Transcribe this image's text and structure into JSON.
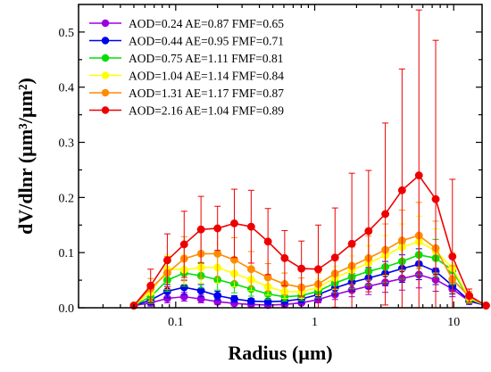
{
  "chart_data": {
    "type": "line",
    "title": "",
    "xlabel": "Radius (µm)",
    "ylabel": "dV/dlnr (µm³/µm²)",
    "xscale": "log",
    "xlim": [
      0.02,
      16
    ],
    "ylim": [
      0,
      0.55
    ],
    "xticks": [
      0.1,
      1,
      10
    ],
    "xtick_labels": [
      "0.1",
      "1",
      "10"
    ],
    "yticks": [
      0.0,
      0.1,
      0.2,
      0.3,
      0.4,
      0.5
    ],
    "ytick_labels": [
      "0.0",
      "0.1",
      "0.2",
      "0.3",
      "0.4",
      "0.5"
    ],
    "grid": false,
    "legend_position": "top-left",
    "error_bars": true,
    "x": [
      0.05,
      0.066,
      0.087,
      0.115,
      0.152,
      0.2,
      0.264,
      0.349,
      0.461,
      0.608,
      0.803,
      1.06,
      1.4,
      1.85,
      2.44,
      3.22,
      4.25,
      5.62,
      7.42,
      9.79,
      12.93,
      17.07
    ],
    "series": [
      {
        "name": "AOD=0.24  AE=0.87  FMF=0.65",
        "color": "#9b00e0",
        "values": [
          0.004,
          0.009,
          0.017,
          0.02,
          0.016,
          0.011,
          0.008,
          0.006,
          0.005,
          0.006,
          0.009,
          0.015,
          0.024,
          0.032,
          0.039,
          0.046,
          0.053,
          0.06,
          0.051,
          0.034,
          0.012,
          0.004
        ],
        "errors": [
          0.003,
          0.006,
          0.008,
          0.008,
          0.007,
          0.005,
          0.004,
          0.003,
          0.003,
          0.003,
          0.004,
          0.006,
          0.009,
          0.012,
          0.015,
          0.018,
          0.021,
          0.024,
          0.021,
          0.014,
          0.006,
          0.002
        ]
      },
      {
        "name": "AOD=0.44  AE=0.95  FMF=0.71",
        "color": "#0000ee",
        "values": [
          0.004,
          0.014,
          0.03,
          0.037,
          0.031,
          0.022,
          0.016,
          0.012,
          0.011,
          0.012,
          0.016,
          0.024,
          0.036,
          0.046,
          0.054,
          0.062,
          0.071,
          0.079,
          0.066,
          0.04,
          0.013,
          0.004
        ],
        "errors": [
          0.003,
          0.008,
          0.012,
          0.013,
          0.011,
          0.008,
          0.006,
          0.005,
          0.005,
          0.005,
          0.007,
          0.009,
          0.013,
          0.016,
          0.019,
          0.022,
          0.025,
          0.028,
          0.024,
          0.015,
          0.006,
          0.002
        ]
      },
      {
        "name": "AOD=0.75  AE=1.11  FMF=0.81",
        "color": "#00e000",
        "values": [
          0.004,
          0.02,
          0.05,
          0.063,
          0.058,
          0.051,
          0.043,
          0.034,
          0.025,
          0.02,
          0.022,
          0.03,
          0.045,
          0.056,
          0.066,
          0.074,
          0.084,
          0.096,
          0.09,
          0.068,
          0.016,
          0.004
        ],
        "errors": [
          0.003,
          0.012,
          0.02,
          0.024,
          0.022,
          0.019,
          0.016,
          0.013,
          0.01,
          0.008,
          0.009,
          0.012,
          0.017,
          0.021,
          0.025,
          0.028,
          0.032,
          0.036,
          0.034,
          0.026,
          0.008,
          0.002
        ]
      },
      {
        "name": "AOD=1.04  AE=1.14  FMF=0.84",
        "color": "#ffff00",
        "values": [
          0.004,
          0.028,
          0.07,
          0.069,
          0.073,
          0.073,
          0.062,
          0.051,
          0.038,
          0.029,
          0.029,
          0.037,
          0.054,
          0.068,
          0.081,
          0.095,
          0.11,
          0.12,
          0.103,
          0.072,
          0.018,
          0.004
        ],
        "errors": [
          0.003,
          0.016,
          0.026,
          0.026,
          0.028,
          0.028,
          0.024,
          0.02,
          0.015,
          0.012,
          0.012,
          0.015,
          0.021,
          0.026,
          0.031,
          0.036,
          0.042,
          0.046,
          0.04,
          0.028,
          0.009,
          0.002
        ]
      },
      {
        "name": "AOD=1.31  AE=1.17  FMF=0.87",
        "color": "#ff8c00",
        "values": [
          0.004,
          0.035,
          0.063,
          0.089,
          0.098,
          0.098,
          0.087,
          0.07,
          0.055,
          0.043,
          0.037,
          0.043,
          0.062,
          0.076,
          0.09,
          0.105,
          0.122,
          0.131,
          0.108,
          0.052,
          0.02,
          0.004
        ],
        "errors": [
          0.003,
          0.018,
          0.03,
          0.04,
          0.044,
          0.044,
          0.04,
          0.032,
          0.025,
          0.02,
          0.017,
          0.02,
          0.028,
          0.034,
          0.04,
          0.047,
          0.055,
          0.06,
          0.049,
          0.024,
          0.01,
          0.002
        ]
      },
      {
        "name": "AOD=2.16  AE=1.04  FMF=0.89",
        "color": "#ee0000",
        "values": [
          0.004,
          0.04,
          0.086,
          0.115,
          0.142,
          0.144,
          0.153,
          0.147,
          0.12,
          0.09,
          0.071,
          0.07,
          0.091,
          0.116,
          0.139,
          0.17,
          0.213,
          0.24,
          0.197,
          0.093,
          0.022,
          0.004
        ],
        "errors": [
          0.004,
          0.03,
          0.048,
          0.06,
          0.06,
          0.04,
          0.062,
          0.066,
          0.06,
          0.05,
          0.05,
          0.08,
          0.09,
          0.128,
          0.11,
          0.165,
          0.22,
          0.3,
          0.288,
          0.14,
          0.012,
          0.003
        ]
      }
    ]
  }
}
